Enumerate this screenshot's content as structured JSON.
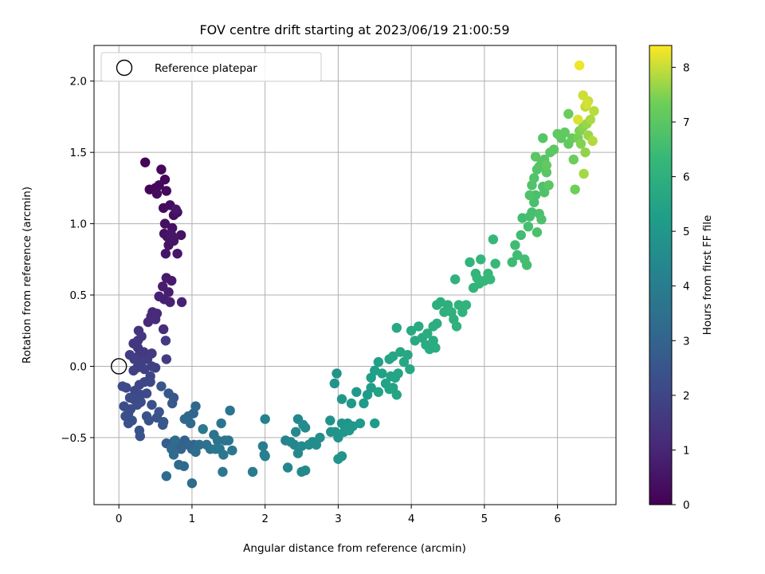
{
  "chart_data": {
    "type": "scatter",
    "title": "FOV centre drift starting at 2023/06/19 21:00:59",
    "xlabel": "Angular distance from reference (arcmin)",
    "ylabel": "Rotation from reference (arcmin)",
    "colorbar_label": "Hours from first FF file",
    "xlim": [
      -0.34,
      6.8
    ],
    "ylim": [
      -0.97,
      2.25
    ],
    "xticks": [
      "0",
      "1",
      "2",
      "3",
      "4",
      "5",
      "6"
    ],
    "yticks": [
      "−0.5",
      "0.0",
      "0.5",
      "1.0",
      "1.5",
      "2.0"
    ],
    "colorbar_ticks": [
      "0",
      "1",
      "2",
      "3",
      "4",
      "5",
      "6",
      "7",
      "8"
    ],
    "colorbar_range": [
      0,
      8.4
    ],
    "grid": true,
    "legend": {
      "placement": "top-left",
      "label": "Reference platepar"
    },
    "reference_point": {
      "x": 0,
      "y": 0
    },
    "points": [
      [
        0.36,
        1.43,
        0.08
      ],
      [
        0.42,
        1.24,
        0.12
      ],
      [
        0.58,
        1.38,
        0.15
      ],
      [
        0.5,
        1.25,
        0.18
      ],
      [
        0.63,
        1.31,
        0.2
      ],
      [
        0.55,
        1.27,
        0.22
      ],
      [
        0.65,
        1.23,
        0.24
      ],
      [
        0.52,
        1.21,
        0.26
      ],
      [
        0.61,
        1.11,
        0.3
      ],
      [
        0.7,
        1.13,
        0.33
      ],
      [
        0.75,
        1.06,
        0.35
      ],
      [
        0.8,
        1.08,
        0.38
      ],
      [
        0.63,
        1.0,
        0.4
      ],
      [
        0.73,
        0.97,
        0.42
      ],
      [
        0.62,
        0.93,
        0.44
      ],
      [
        0.85,
        0.92,
        0.46
      ],
      [
        0.66,
        0.91,
        0.48
      ],
      [
        0.75,
        0.88,
        0.5
      ],
      [
        0.68,
        0.85,
        0.52
      ],
      [
        0.64,
        0.79,
        0.54
      ],
      [
        0.8,
        0.79,
        0.56
      ],
      [
        0.78,
        1.1,
        0.58
      ],
      [
        0.72,
        0.92,
        0.6
      ],
      [
        0.65,
        0.62,
        0.7
      ],
      [
        0.72,
        0.6,
        0.74
      ],
      [
        0.6,
        0.56,
        0.78
      ],
      [
        0.68,
        0.52,
        0.8
      ],
      [
        0.55,
        0.49,
        0.84
      ],
      [
        0.62,
        0.47,
        0.86
      ],
      [
        0.7,
        0.45,
        0.88
      ],
      [
        0.86,
        0.45,
        0.9
      ],
      [
        0.46,
        0.38,
        1.05
      ],
      [
        0.44,
        0.35,
        1.1
      ],
      [
        0.52,
        0.37,
        1.12
      ],
      [
        0.4,
        0.31,
        1.15
      ],
      [
        0.5,
        0.33,
        1.18
      ],
      [
        0.61,
        0.26,
        1.25
      ],
      [
        0.27,
        0.25,
        1.4
      ],
      [
        0.26,
        0.18,
        1.45
      ],
      [
        0.31,
        0.21,
        1.48
      ],
      [
        0.2,
        0.16,
        1.52
      ],
      [
        0.26,
        0.13,
        1.55
      ],
      [
        0.34,
        0.1,
        1.58
      ],
      [
        0.28,
        0.08,
        1.6
      ],
      [
        0.45,
        0.09,
        1.62
      ],
      [
        0.64,
        0.18,
        1.64
      ],
      [
        0.65,
        0.05,
        1.66
      ],
      [
        0.39,
        0.05,
        1.7
      ],
      [
        0.15,
        0.08,
        1.72
      ],
      [
        0.21,
        0.05,
        1.74
      ],
      [
        0.3,
        0.02,
        1.76
      ],
      [
        0.25,
        -0.01,
        1.78
      ],
      [
        0.45,
        0.0,
        1.8
      ],
      [
        0.35,
        -0.02,
        1.82
      ],
      [
        0.2,
        -0.03,
        1.84
      ],
      [
        0.5,
        -0.01,
        1.86
      ],
      [
        0.43,
        -0.07,
        1.9
      ],
      [
        0.28,
        -0.13,
        2.0
      ],
      [
        0.35,
        -0.11,
        2.03
      ],
      [
        0.43,
        -0.11,
        2.06
      ],
      [
        0.22,
        -0.17,
        2.08
      ],
      [
        0.3,
        -0.2,
        2.1
      ],
      [
        0.1,
        -0.15,
        2.12
      ],
      [
        0.05,
        -0.14,
        2.14
      ],
      [
        0.15,
        -0.22,
        2.16
      ],
      [
        0.38,
        -0.19,
        2.18
      ],
      [
        0.2,
        -0.23,
        2.2
      ],
      [
        0.25,
        -0.27,
        2.22
      ],
      [
        0.3,
        -0.25,
        2.24
      ],
      [
        0.16,
        -0.3,
        2.26
      ],
      [
        0.07,
        -0.28,
        2.28
      ],
      [
        0.45,
        -0.27,
        2.3
      ],
      [
        0.13,
        -0.33,
        2.32
      ],
      [
        0.09,
        -0.35,
        2.34
      ],
      [
        0.18,
        -0.38,
        2.36
      ],
      [
        0.13,
        -0.4,
        2.38
      ],
      [
        0.38,
        -0.35,
        2.4
      ],
      [
        0.41,
        -0.38,
        2.42
      ],
      [
        0.28,
        -0.45,
        2.44
      ],
      [
        0.29,
        -0.49,
        2.46
      ],
      [
        0.52,
        -0.36,
        2.48
      ],
      [
        0.6,
        -0.41,
        2.5
      ],
      [
        0.55,
        -0.32,
        2.52
      ],
      [
        0.58,
        -0.14,
        2.54
      ],
      [
        0.68,
        -0.19,
        2.56
      ],
      [
        0.75,
        -0.22,
        2.58
      ],
      [
        0.73,
        -0.26,
        2.6
      ],
      [
        0.61,
        -0.39,
        2.62
      ],
      [
        0.65,
        -0.54,
        2.8
      ],
      [
        0.72,
        -0.56,
        2.85
      ],
      [
        0.83,
        -0.55,
        2.9
      ],
      [
        0.75,
        -0.53,
        2.93
      ],
      [
        0.9,
        -0.52,
        2.96
      ],
      [
        0.85,
        -0.58,
        3.0
      ],
      [
        0.95,
        -0.55,
        3.02
      ],
      [
        1.03,
        -0.55,
        3.05
      ],
      [
        1.0,
        -0.58,
        3.07
      ],
      [
        0.95,
        -0.35,
        3.1
      ],
      [
        1.02,
        -0.33,
        3.12
      ],
      [
        0.9,
        -0.37,
        3.14
      ],
      [
        1.05,
        -0.28,
        3.16
      ],
      [
        0.98,
        -0.4,
        3.18
      ],
      [
        0.82,
        -0.69,
        3.2
      ],
      [
        0.89,
        -0.7,
        3.22
      ],
      [
        0.75,
        -0.62,
        3.24
      ],
      [
        0.65,
        -0.77,
        3.26
      ],
      [
        0.72,
        -0.58,
        3.28
      ],
      [
        1.0,
        -0.82,
        3.3
      ],
      [
        0.77,
        -0.52,
        3.32
      ],
      [
        1.1,
        -0.55,
        3.34
      ],
      [
        1.05,
        -0.6,
        3.36
      ],
      [
        1.2,
        -0.55,
        3.5
      ],
      [
        1.25,
        -0.58,
        3.55
      ],
      [
        1.3,
        -0.48,
        3.58
      ],
      [
        1.35,
        -0.52,
        3.6
      ],
      [
        1.4,
        -0.4,
        3.62
      ],
      [
        1.45,
        -0.52,
        3.65
      ],
      [
        1.52,
        -0.31,
        3.68
      ],
      [
        1.5,
        -0.52,
        3.7
      ],
      [
        1.55,
        -0.59,
        3.72
      ],
      [
        1.38,
        -0.58,
        3.74
      ],
      [
        1.43,
        -0.62,
        3.76
      ],
      [
        1.32,
        -0.58,
        3.78
      ],
      [
        1.42,
        -0.74,
        3.8
      ],
      [
        1.15,
        -0.44,
        3.82
      ],
      [
        1.83,
        -0.74,
        3.9
      ],
      [
        1.97,
        -0.56,
        4.0
      ],
      [
        1.99,
        -0.62,
        4.05
      ],
      [
        2.0,
        -0.37,
        4.1
      ],
      [
        2.0,
        -0.63,
        4.12
      ],
      [
        2.28,
        -0.52,
        4.25
      ],
      [
        2.31,
        -0.71,
        4.3
      ],
      [
        2.35,
        -0.53,
        4.35
      ],
      [
        2.4,
        -0.55,
        4.38
      ],
      [
        2.45,
        -0.37,
        4.4
      ],
      [
        2.42,
        -0.46,
        4.42
      ],
      [
        2.45,
        -0.61,
        4.45
      ],
      [
        2.5,
        -0.74,
        4.48
      ],
      [
        2.5,
        -0.56,
        4.5
      ],
      [
        2.55,
        -0.43,
        4.52
      ],
      [
        2.55,
        -0.73,
        4.54
      ],
      [
        2.52,
        -0.41,
        4.56
      ],
      [
        2.6,
        -0.55,
        4.58
      ],
      [
        2.65,
        -0.53,
        4.6
      ],
      [
        2.7,
        -0.55,
        4.62
      ],
      [
        2.75,
        -0.5,
        4.64
      ],
      [
        2.89,
        -0.38,
        4.75
      ],
      [
        2.9,
        -0.46,
        4.78
      ],
      [
        2.96,
        -0.46,
        4.8
      ],
      [
        2.95,
        -0.12,
        4.82
      ],
      [
        2.98,
        -0.05,
        4.84
      ],
      [
        3.0,
        -0.65,
        4.86
      ],
      [
        3.05,
        -0.63,
        4.88
      ],
      [
        3.0,
        -0.5,
        4.9
      ],
      [
        3.05,
        -0.4,
        4.92
      ],
      [
        3.08,
        -0.46,
        4.94
      ],
      [
        3.1,
        -0.42,
        4.96
      ],
      [
        3.13,
        -0.4,
        4.98
      ],
      [
        3.05,
        -0.23,
        5.0
      ],
      [
        3.15,
        -0.45,
        5.02
      ],
      [
        3.2,
        -0.42,
        5.04
      ],
      [
        3.18,
        -0.26,
        5.06
      ],
      [
        3.25,
        -0.18,
        5.08
      ],
      [
        3.3,
        -0.4,
        5.1
      ],
      [
        3.35,
        -0.26,
        5.12
      ],
      [
        3.4,
        -0.2,
        5.14
      ],
      [
        3.45,
        -0.15,
        5.16
      ],
      [
        3.5,
        -0.4,
        5.18
      ],
      [
        3.45,
        -0.08,
        5.3
      ],
      [
        3.5,
        -0.03,
        5.32
      ],
      [
        3.55,
        0.03,
        5.35
      ],
      [
        3.6,
        -0.05,
        5.38
      ],
      [
        3.55,
        -0.18,
        5.4
      ],
      [
        3.65,
        -0.12,
        5.42
      ],
      [
        3.7,
        -0.16,
        5.44
      ],
      [
        3.72,
        -0.07,
        5.46
      ],
      [
        3.75,
        -0.15,
        5.48
      ],
      [
        3.78,
        -0.08,
        5.5
      ],
      [
        3.8,
        -0.2,
        5.52
      ],
      [
        3.82,
        -0.05,
        5.54
      ],
      [
        3.7,
        0.05,
        5.56
      ],
      [
        3.75,
        0.07,
        5.58
      ],
      [
        3.85,
        0.1,
        5.6
      ],
      [
        3.9,
        0.03,
        5.62
      ],
      [
        3.95,
        0.08,
        5.64
      ],
      [
        3.8,
        0.27,
        5.66
      ],
      [
        3.98,
        -0.02,
        5.68
      ],
      [
        4.0,
        0.25,
        5.7
      ],
      [
        4.05,
        0.18,
        5.72
      ],
      [
        4.1,
        0.28,
        5.74
      ],
      [
        4.15,
        0.2,
        5.76
      ],
      [
        4.2,
        0.15,
        5.78
      ],
      [
        4.25,
        0.12,
        5.8
      ],
      [
        4.22,
        0.23,
        5.82
      ],
      [
        4.3,
        0.18,
        5.84
      ],
      [
        4.33,
        0.13,
        5.86
      ],
      [
        4.3,
        0.28,
        5.88
      ],
      [
        4.35,
        0.3,
        5.9
      ],
      [
        4.35,
        0.43,
        5.92
      ],
      [
        4.4,
        0.45,
        5.94
      ],
      [
        4.45,
        0.38,
        5.96
      ],
      [
        4.5,
        0.43,
        5.98
      ],
      [
        4.55,
        0.38,
        6.0
      ],
      [
        4.58,
        0.33,
        6.02
      ],
      [
        4.6,
        0.61,
        6.04
      ],
      [
        4.62,
        0.28,
        6.06
      ],
      [
        4.65,
        0.43,
        6.08
      ],
      [
        4.7,
        0.38,
        6.1
      ],
      [
        4.75,
        0.43,
        6.12
      ],
      [
        4.8,
        0.73,
        6.14
      ],
      [
        4.85,
        0.55,
        6.16
      ],
      [
        4.88,
        0.65,
        6.18
      ],
      [
        4.9,
        0.62,
        6.2
      ],
      [
        4.93,
        0.58,
        6.22
      ],
      [
        4.95,
        0.75,
        6.24
      ],
      [
        5.0,
        0.6,
        6.26
      ],
      [
        5.05,
        0.65,
        6.28
      ],
      [
        5.08,
        0.61,
        6.3
      ],
      [
        5.12,
        0.89,
        6.32
      ],
      [
        5.15,
        0.72,
        6.34
      ],
      [
        5.38,
        0.73,
        6.45
      ],
      [
        5.42,
        0.85,
        6.48
      ],
      [
        5.45,
        0.78,
        6.5
      ],
      [
        5.5,
        0.92,
        6.52
      ],
      [
        5.52,
        1.04,
        6.54
      ],
      [
        5.55,
        0.75,
        6.56
      ],
      [
        5.58,
        0.71,
        6.58
      ],
      [
        5.6,
        0.98,
        6.6
      ],
      [
        5.62,
        1.05,
        6.62
      ],
      [
        5.65,
        1.08,
        6.64
      ],
      [
        5.68,
        1.15,
        6.66
      ],
      [
        5.7,
        1.2,
        6.68
      ],
      [
        5.72,
        0.94,
        6.7
      ],
      [
        5.75,
        1.07,
        6.72
      ],
      [
        5.78,
        1.03,
        6.74
      ],
      [
        5.8,
        1.26,
        6.76
      ],
      [
        5.82,
        1.22,
        6.78
      ],
      [
        5.62,
        1.2,
        6.8
      ],
      [
        5.65,
        1.27,
        6.82
      ],
      [
        5.68,
        1.32,
        6.84
      ],
      [
        5.72,
        1.38,
        6.86
      ],
      [
        5.75,
        1.4,
        6.88
      ],
      [
        5.78,
        1.42,
        6.9
      ],
      [
        5.8,
        1.6,
        6.92
      ],
      [
        5.82,
        1.45,
        6.94
      ],
      [
        5.85,
        1.36,
        6.96
      ],
      [
        5.88,
        1.27,
        6.98
      ],
      [
        5.7,
        1.47,
        7.0
      ],
      [
        5.9,
        1.5,
        7.02
      ],
      [
        5.95,
        1.52,
        7.04
      ],
      [
        6.0,
        1.63,
        7.06
      ],
      [
        6.05,
        1.6,
        7.08
      ],
      [
        6.1,
        1.64,
        7.1
      ],
      [
        6.15,
        1.56,
        7.12
      ],
      [
        5.85,
        1.41,
        7.14
      ],
      [
        6.2,
        1.6,
        7.2
      ],
      [
        6.15,
        1.77,
        7.25
      ],
      [
        6.22,
        1.45,
        7.3
      ],
      [
        6.24,
        1.24,
        7.35
      ],
      [
        6.28,
        1.6,
        7.4
      ],
      [
        6.3,
        1.65,
        7.45
      ],
      [
        6.32,
        1.56,
        7.5
      ],
      [
        6.35,
        1.68,
        7.55
      ],
      [
        6.38,
        1.5,
        7.6
      ],
      [
        6.4,
        1.7,
        7.65
      ],
      [
        6.42,
        1.62,
        7.7
      ],
      [
        6.36,
        1.35,
        7.75
      ],
      [
        6.45,
        1.73,
        7.8
      ],
      [
        6.48,
        1.58,
        7.85
      ],
      [
        6.5,
        1.79,
        7.9
      ],
      [
        6.38,
        1.82,
        7.95
      ],
      [
        6.42,
        1.86,
        8.0
      ],
      [
        6.35,
        1.9,
        8.05
      ],
      [
        6.4,
        1.84,
        8.1
      ],
      [
        6.28,
        1.73,
        8.15
      ],
      [
        6.3,
        2.11,
        8.3
      ]
    ]
  }
}
